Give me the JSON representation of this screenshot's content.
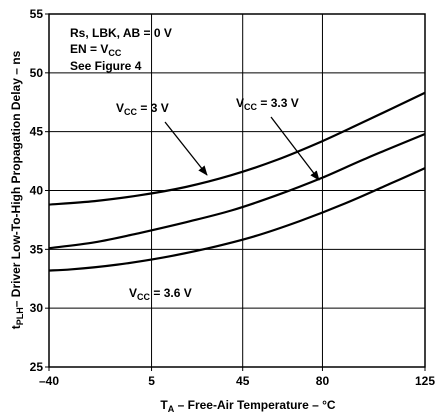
{
  "chart_data": {
    "type": "line",
    "xlabel": {
      "main": "T",
      "sub": "A",
      "rest": " – Free-Air Temperature – °C"
    },
    "ylabel": {
      "pre": "t",
      "sub": "PLH",
      "rest": "– Driver Low-To-High Propagation Delay – ns"
    },
    "xlim": [
      -40,
      125
    ],
    "ylim": [
      25,
      55
    ],
    "x_ticks": [
      -40,
      5,
      45,
      80,
      125
    ],
    "x_tick_labels": [
      "–40",
      "5",
      "45",
      "80",
      "125"
    ],
    "y_ticks": [
      25,
      30,
      35,
      40,
      45,
      50,
      55
    ],
    "y_tick_labels": [
      "25",
      "30",
      "35",
      "40",
      "45",
      "50",
      "55"
    ],
    "grid": true,
    "conditions": {
      "line1": "Rs, LBK, AB = 0 V",
      "line2_pre": "EN = V",
      "line2_sub": "CC",
      "line3": "See Figure 4"
    },
    "series": [
      {
        "name": "VCC = 3 V",
        "label_pre": "V",
        "label_sub": "CC",
        "label_post": " = 3 V",
        "x": [
          -40,
          -20,
          0,
          20,
          40,
          60,
          80,
          100,
          125
        ],
        "values": [
          38.8,
          39.1,
          39.6,
          40.3,
          41.3,
          42.6,
          44.2,
          46.0,
          48.3
        ]
      },
      {
        "name": "VCC = 3.3 V",
        "label_pre": "V",
        "label_sub": "CC",
        "label_post": " = 3.3 V",
        "x": [
          -40,
          -20,
          0,
          20,
          40,
          60,
          80,
          100,
          125
        ],
        "values": [
          35.1,
          35.6,
          36.4,
          37.3,
          38.3,
          39.6,
          41.1,
          42.8,
          44.8
        ]
      },
      {
        "name": "VCC = 3.6 V",
        "label_pre": "V",
        "label_sub": "CC",
        "label_post": " = 3.6 V",
        "x": [
          -40,
          -30,
          -10,
          10,
          30,
          50,
          70,
          90,
          110,
          125
        ],
        "values": [
          33.2,
          33.3,
          33.7,
          34.3,
          35.1,
          36.1,
          37.4,
          38.9,
          40.6,
          41.9
        ]
      }
    ]
  }
}
